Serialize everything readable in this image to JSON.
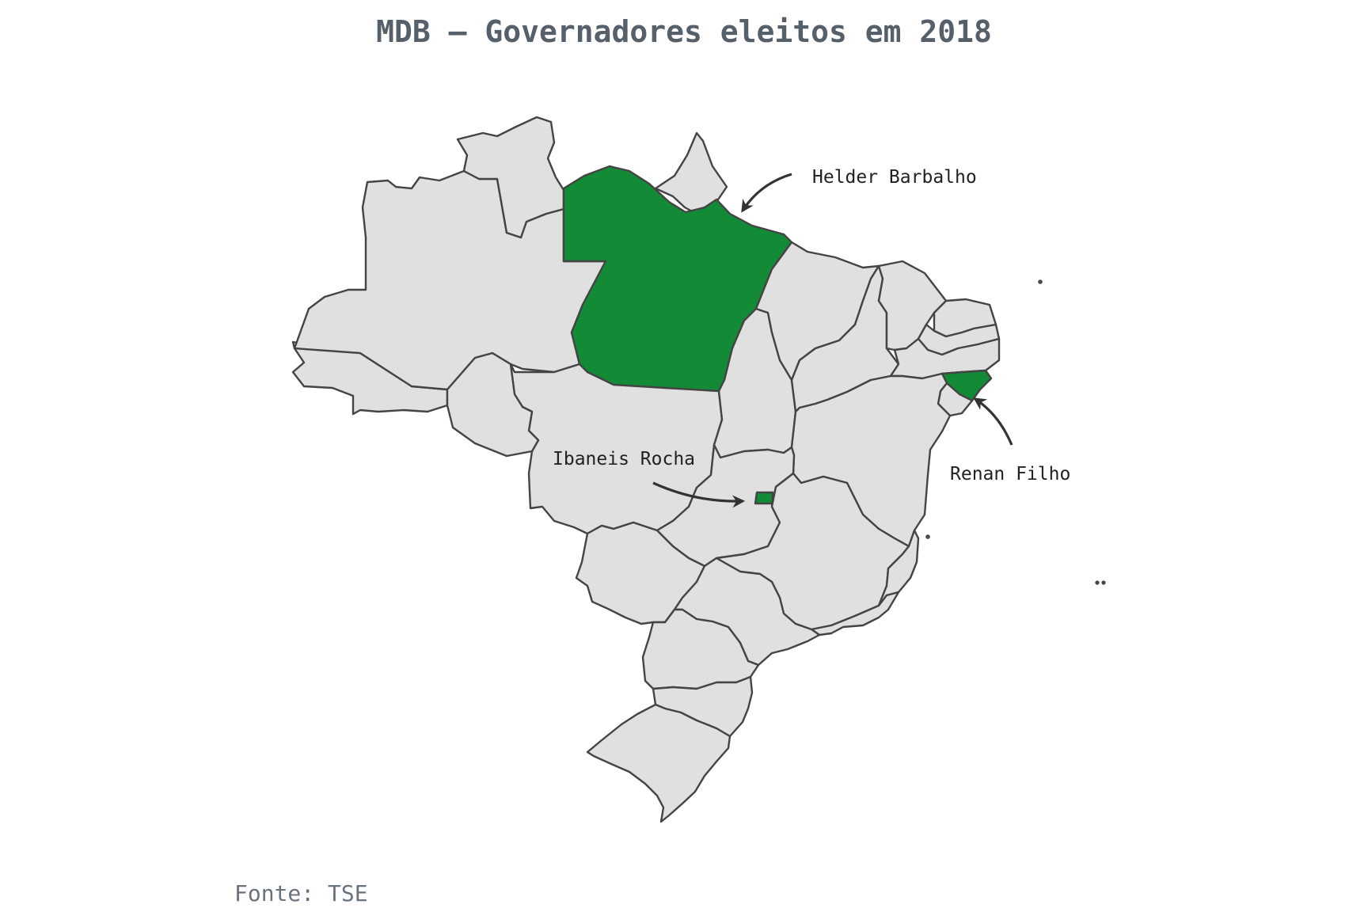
{
  "title": "MDB – Governadores eleitos em 2018",
  "source": "Fonte: TSE",
  "colors": {
    "highlight": "#138a36",
    "state_fill": "#e0e0e0",
    "border": "#444444"
  },
  "annotations": [
    {
      "label": "Helder Barbalho"
    },
    {
      "label": "Ibaneis Rocha"
    },
    {
      "label": "Renan Filho"
    }
  ]
}
